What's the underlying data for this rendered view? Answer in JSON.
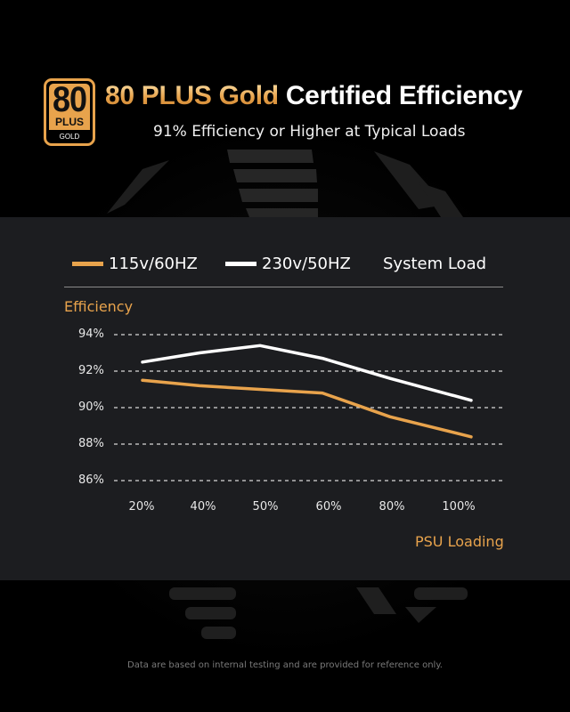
{
  "header": {
    "badge": {
      "number": "80",
      "plus": "PLUS",
      "tier": "GOLD",
      "icon": "80-plus-gold-badge-icon"
    },
    "title_highlight": "80 PLUS Gold",
    "title_rest": " Certified Efficiency",
    "subtitle": "91% Efficiency or Higher at Typical Loads"
  },
  "legend": {
    "items": [
      {
        "label": "115v/60HZ",
        "color": "#e8a34c"
      },
      {
        "label": "230v/50HZ",
        "color": "#ffffff"
      },
      {
        "label": "System Load"
      }
    ]
  },
  "axes": {
    "y_title": "Efficiency",
    "x_title": "PSU Loading",
    "y_ticks": [
      "94%",
      "92%",
      "90%",
      "88%",
      "86%"
    ],
    "x_ticks": [
      "20%",
      "40%",
      "50%",
      "60%",
      "80%",
      "100%"
    ]
  },
  "footer": {
    "note": "Data are based on internal testing and are provided for reference only."
  },
  "colors": {
    "accent": "#e8a34c",
    "panel": "#1c1d20",
    "background": "#000000"
  },
  "chart_data": {
    "type": "line",
    "title": "80 PLUS Gold Certified Efficiency",
    "subtitle": "91% Efficiency or Higher at Typical Loads",
    "xlabel": "PSU Loading",
    "ylabel": "Efficiency",
    "categories": [
      "20%",
      "40%",
      "50%",
      "60%",
      "80%",
      "100%"
    ],
    "series": [
      {
        "name": "115v/60HZ",
        "color": "#e8a34c",
        "values": [
          91.5,
          91.2,
          91.0,
          90.8,
          89.5,
          88.4
        ]
      },
      {
        "name": "230v/50HZ",
        "color": "#ffffff",
        "values": [
          92.5,
          93.0,
          93.4,
          92.7,
          91.6,
          90.4
        ]
      }
    ],
    "ylim": [
      86,
      94
    ],
    "yticks": [
      86,
      88,
      90,
      92,
      94
    ],
    "grid": "horizontal dashed",
    "legend_position": "top",
    "legend_extra_label": "System Load"
  }
}
